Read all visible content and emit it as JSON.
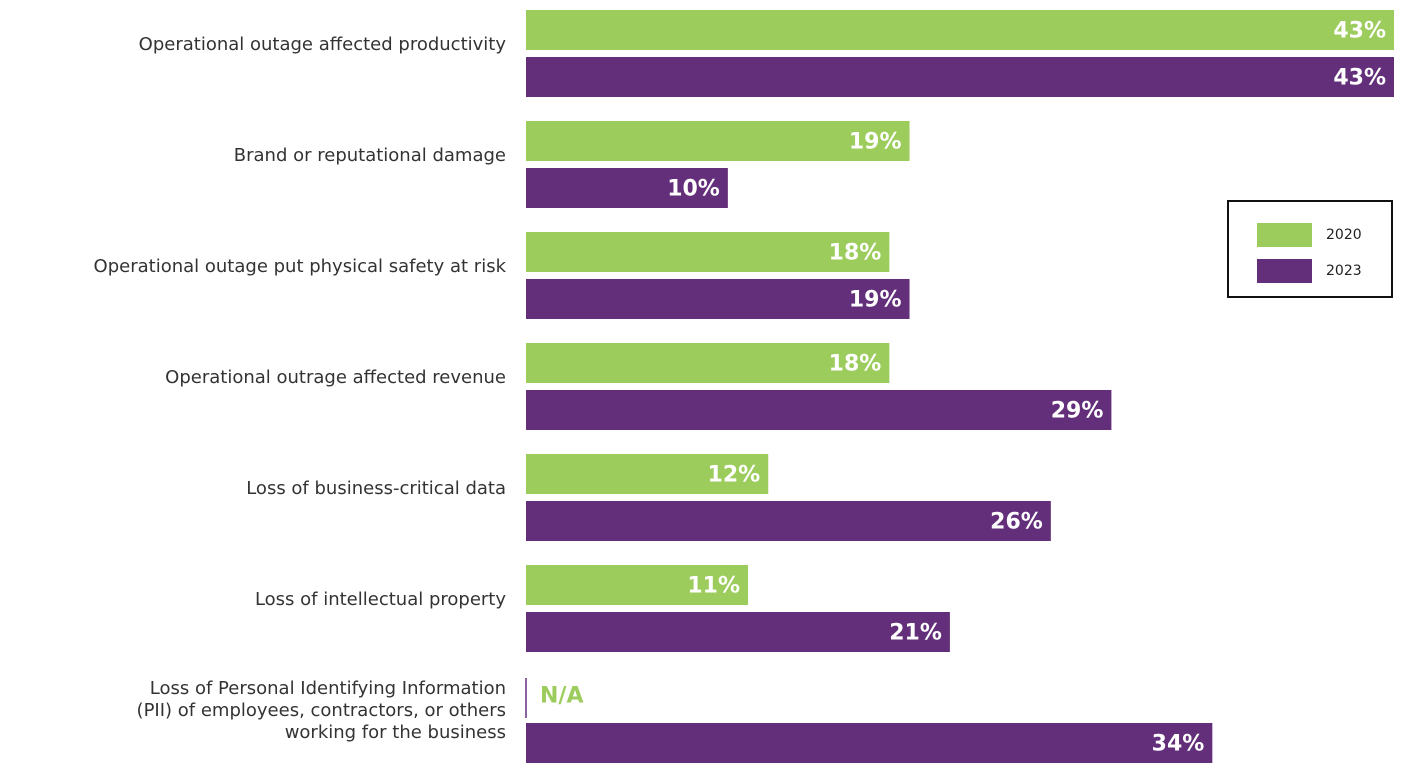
{
  "chart_data": {
    "type": "barh",
    "categories": [
      "Operational outage affected productivity",
      "Brand or reputational damage",
      "Operational outage put physical safety at risk",
      "Operational outrage affected revenue",
      "Loss of business-critical data",
      "Loss of intellectual property",
      "Loss of Personal Identifying Information\n(PII) of employees, contractors, or others\nworking for the business"
    ],
    "series": [
      {
        "name": "2020",
        "color": "#9ccc5c",
        "values": [
          43,
          19,
          18,
          18,
          12,
          11,
          null
        ],
        "value_labels": [
          "43%",
          "19%",
          "18%",
          "18%",
          "12%",
          "11%",
          "N/A"
        ]
      },
      {
        "name": "2023",
        "color": "#642f7a",
        "values": [
          43,
          10,
          19,
          29,
          26,
          21,
          34
        ],
        "value_labels": [
          "43%",
          "10%",
          "19%",
          "29%",
          "26%",
          "21%",
          "34%"
        ]
      }
    ],
    "legend": "right"
  }
}
